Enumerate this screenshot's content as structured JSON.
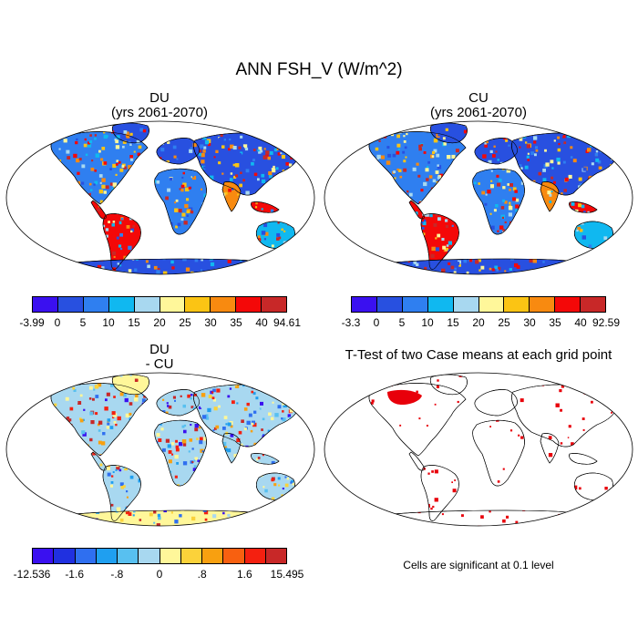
{
  "title": "ANN FSH_V (W/m^2)",
  "panels": {
    "du": {
      "name": "DU",
      "subtitle": "(yrs 2061-2070)"
    },
    "cu": {
      "name": "CU",
      "subtitle": "(yrs 2061-2070)"
    },
    "diff": {
      "name": "DU",
      "subtitle": "- CU"
    },
    "ttest": {
      "title": "T-Test of two Case means at each grid point",
      "note": "Cells are significant at 0.1 level"
    }
  },
  "colorbars": {
    "du": {
      "colors": [
        "#3a10f0",
        "#2850e0",
        "#2f7ff0",
        "#10b8f0",
        "#a8d8f0",
        "#fff79a",
        "#fbc414",
        "#f88a10",
        "#f40808",
        "#c82828"
      ],
      "labels": [
        "-3.99",
        "0",
        "5",
        "10",
        "15",
        "20",
        "25",
        "30",
        "35",
        "40",
        "94.61"
      ]
    },
    "cu": {
      "colors": [
        "#3a10f0",
        "#2850e0",
        "#2f7ff0",
        "#10b8f0",
        "#a8d8f0",
        "#fff79a",
        "#fbc414",
        "#f88a10",
        "#f40808",
        "#c82828"
      ],
      "labels": [
        "-3.3",
        "0",
        "5",
        "10",
        "15",
        "20",
        "25",
        "30",
        "35",
        "40",
        "92.59"
      ]
    },
    "diff": {
      "colors": [
        "#3a10f0",
        "#2030e0",
        "#2f6ff0",
        "#1f9ff0",
        "#58c0f0",
        "#a8d8f0",
        "#fff79a",
        "#fbd23a",
        "#f8a010",
        "#f86010",
        "#f42010",
        "#c82828"
      ],
      "labels": [
        "-12.536",
        "-1.6",
        "-.8",
        "0",
        ".8",
        "1.6",
        "15.495"
      ],
      "label_positions": [
        0,
        2,
        4,
        6,
        8,
        10,
        12
      ]
    }
  }
}
